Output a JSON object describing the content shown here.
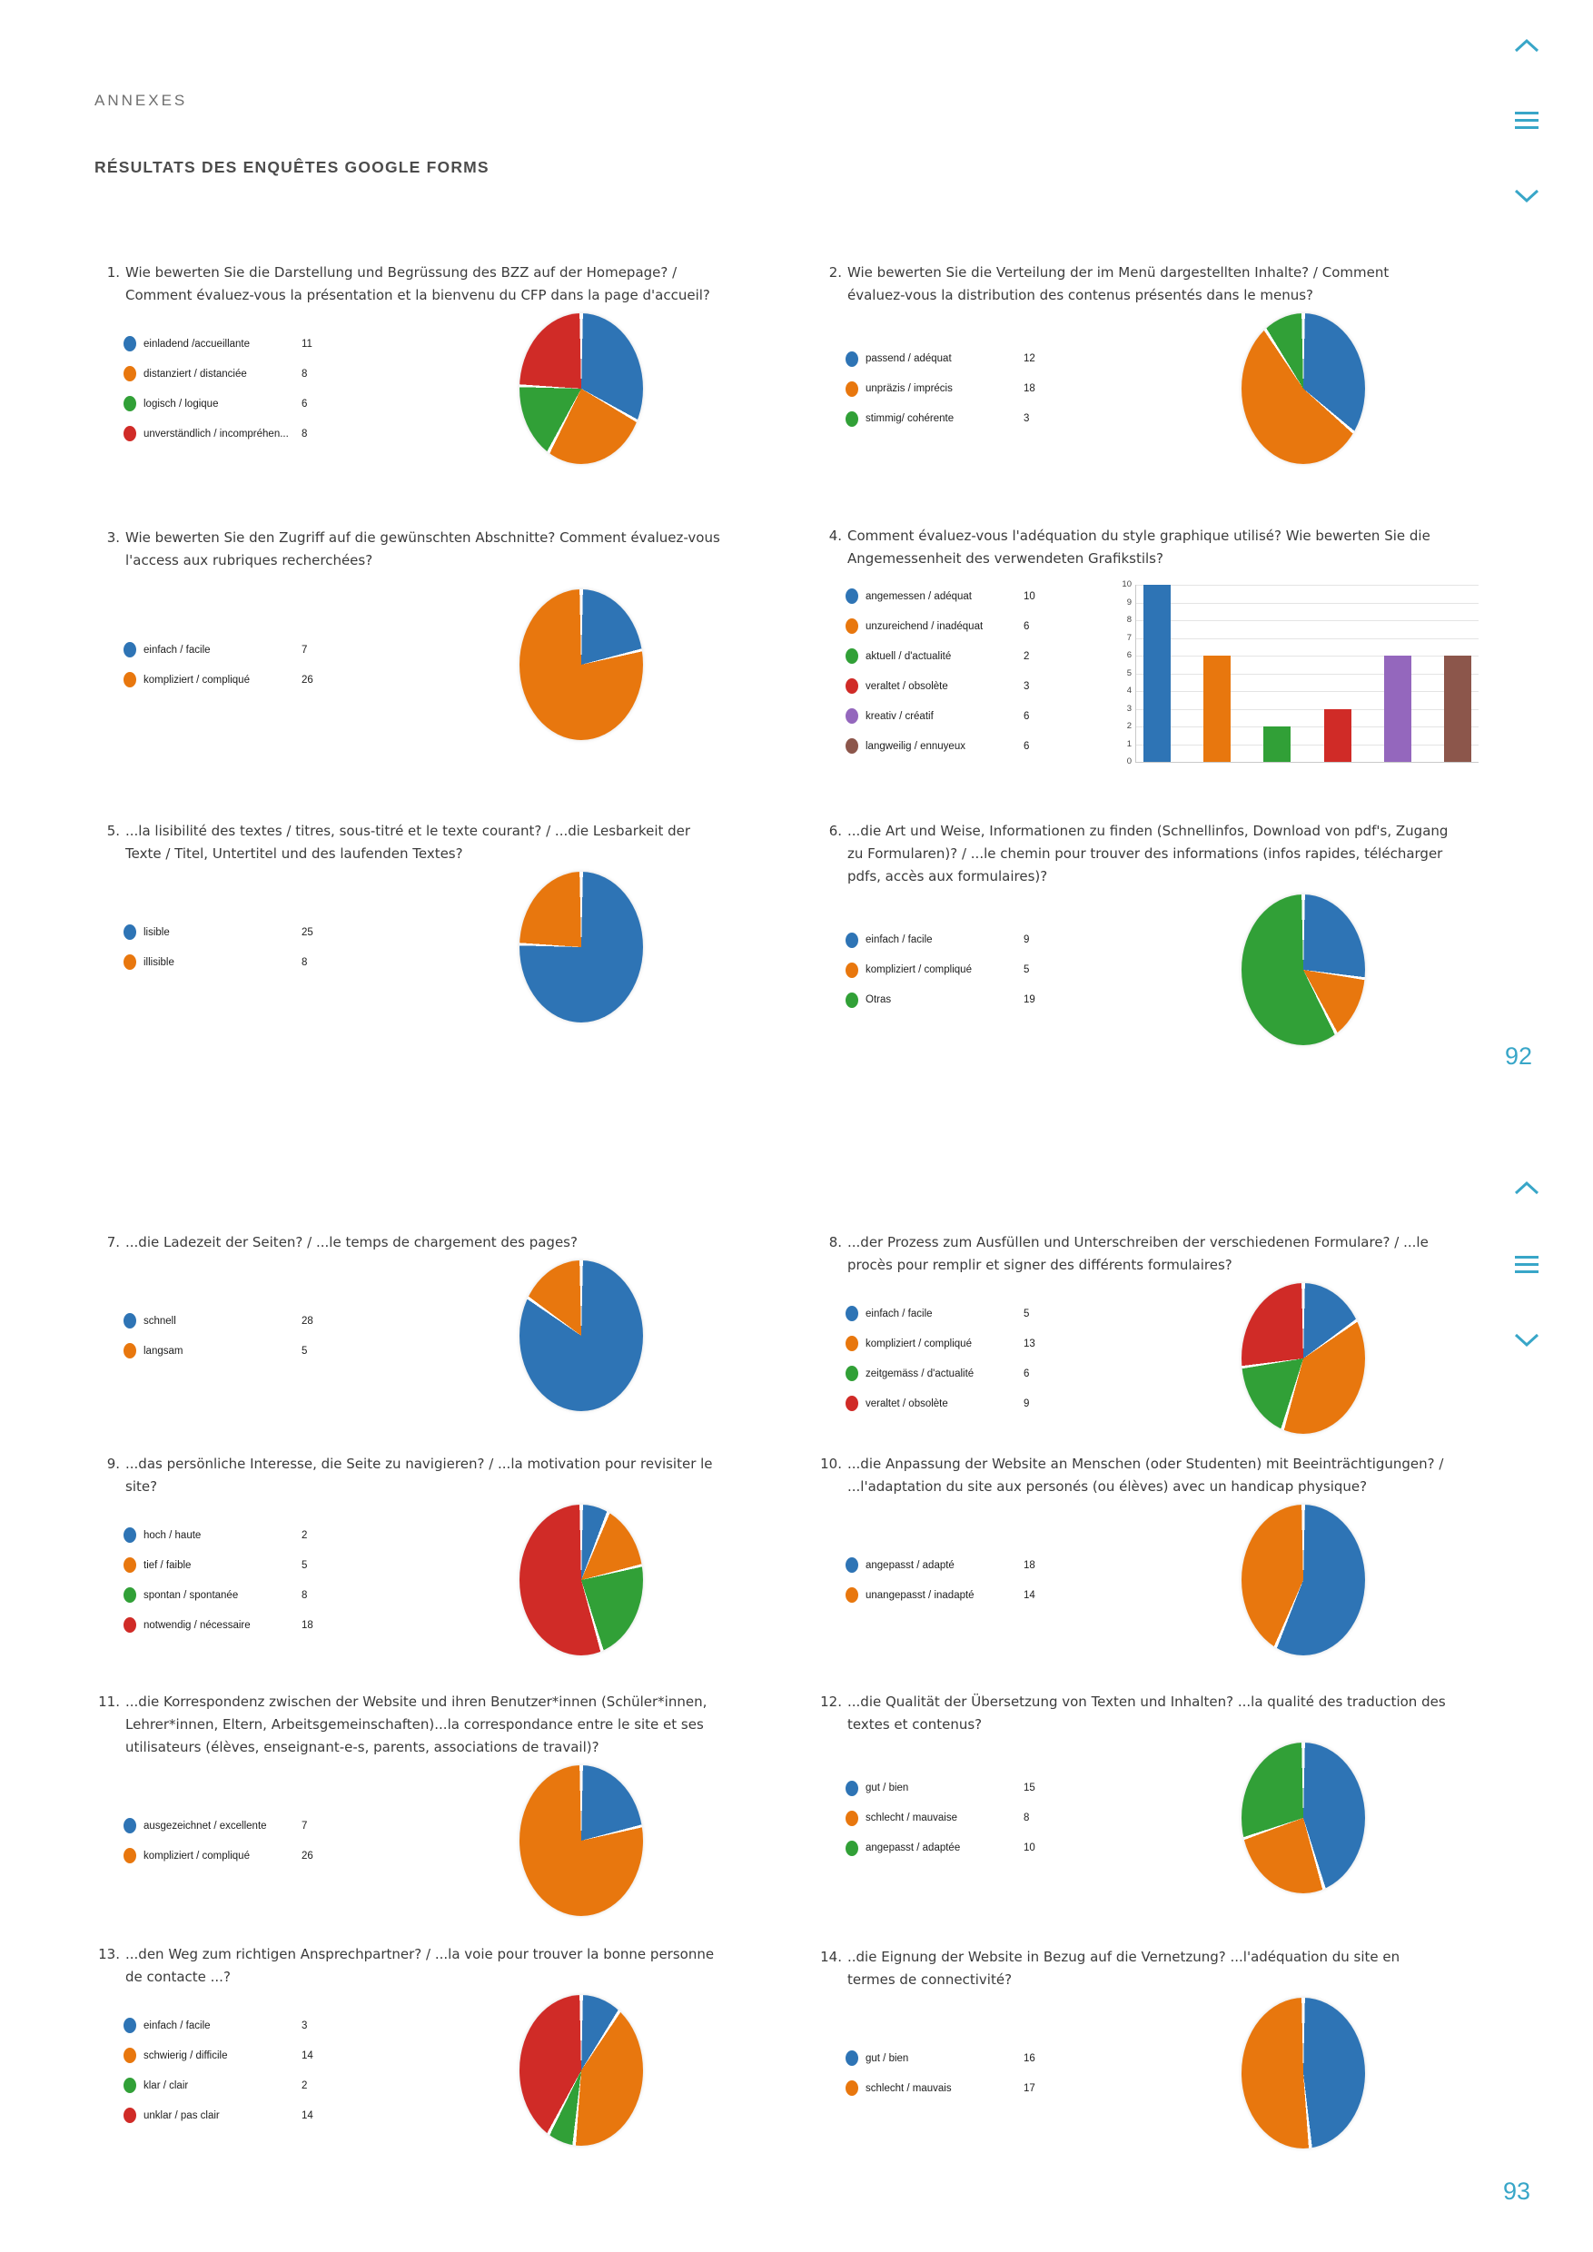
{
  "header": {
    "eyebrow": "ANNEXES",
    "title": "RÉSULTATS DES ENQUÊTES GOOGLE FORMS"
  },
  "page_numbers": [
    "92",
    "93"
  ],
  "nav_icons": [
    "chevron-up",
    "menu",
    "chevron-down"
  ],
  "colors": {
    "accent": "#38a6c8",
    "blue": "#2e74b5",
    "orange": "#e8770e",
    "green": "#31a037",
    "red": "#d02b27",
    "purple": "#9467bd",
    "brown": "#8c564b"
  },
  "chart_data": [
    {
      "id": "q1",
      "number": "1.",
      "type": "pie",
      "question": "Wie bewerten Sie die Darstellung und Begrüssung des BZZ auf der Homepage? / Comment évaluez-vous la présentation et la bienvenu du CFP dans la page d'accueil?",
      "labels": [
        "einladend /accueillante",
        "distanziert / distanciée",
        "logisch / logique",
        "unverständlich / incompréhen..."
      ],
      "values": [
        11,
        8,
        6,
        8
      ],
      "colors": [
        "#2e74b5",
        "#e8770e",
        "#31a037",
        "#d02b27"
      ]
    },
    {
      "id": "q2",
      "number": "2.",
      "type": "pie",
      "question": "Wie bewerten Sie die Verteilung der im Menü dargestellten Inhalte? / Comment évaluez-vous la distribution des contenus présentés dans le menus?",
      "labels": [
        "passend / adéquat",
        "unpräzis / imprécis",
        "stimmig/ cohérente"
      ],
      "values": [
        12,
        18,
        3
      ],
      "colors": [
        "#2e74b5",
        "#e8770e",
        "#31a037"
      ]
    },
    {
      "id": "q3",
      "number": "3.",
      "type": "pie",
      "question": "Wie bewerten Sie den Zugriff auf die gewünschten Abschnitte? Comment évaluez-vous l'access aux rubriques recherchées?",
      "labels": [
        "einfach / facile",
        "kompliziert / compliqué"
      ],
      "values": [
        7,
        26
      ],
      "colors": [
        "#2e74b5",
        "#e8770e"
      ]
    },
    {
      "id": "q4",
      "number": "4.",
      "type": "bar",
      "question": "Comment évaluez-vous l'adéquation du style graphique utilisé? Wie bewerten Sie die Angemessenheit des verwendeten Grafikstils?",
      "labels": [
        "angemessen / adéquat",
        "unzureichend / inadéquat",
        "aktuell / d'actualité",
        "veraltet / obsolète",
        "kreativ / créatif",
        "langweilig / ennuyeux"
      ],
      "values": [
        10,
        6,
        2,
        3,
        6,
        6
      ],
      "colors": [
        "#2e74b5",
        "#e8770e",
        "#31a037",
        "#d02b27",
        "#9467bd",
        "#8c564b"
      ],
      "ylim": [
        0,
        10
      ],
      "yticks": [
        0,
        1,
        2,
        3,
        4,
        5,
        6,
        7,
        8,
        9,
        10
      ]
    },
    {
      "id": "q5",
      "number": "5.",
      "type": "pie",
      "question": "...la lisibilité des textes / titres, sous-titré et le texte courant? / ...die Lesbarkeit der Texte / Titel, Untertitel und des laufenden Textes?",
      "labels": [
        "lisible",
        "illisible"
      ],
      "values": [
        25,
        8
      ],
      "colors": [
        "#2e74b5",
        "#e8770e"
      ]
    },
    {
      "id": "q6",
      "number": "6.",
      "type": "pie",
      "question": "...die Art und Weise, Informationen zu finden (Schnellinfos, Download von pdf's, Zugang zu Formularen)? / ...le chemin pour trouver des informations (infos rapides, télécharger pdfs, accès aux formulaires)?",
      "labels": [
        "einfach / facile",
        "kompliziert / compliqué",
        "Otras"
      ],
      "values": [
        9,
        5,
        19
      ],
      "colors": [
        "#2e74b5",
        "#e8770e",
        "#31a037"
      ]
    },
    {
      "id": "q7",
      "number": "7.",
      "type": "pie",
      "question": "...die Ladezeit der Seiten? / ...le temps de chargement des pages?",
      "labels": [
        "schnell",
        "langsam"
      ],
      "values": [
        28,
        5
      ],
      "colors": [
        "#2e74b5",
        "#e8770e"
      ]
    },
    {
      "id": "q8",
      "number": "8.",
      "type": "pie",
      "question": "...der Prozess zum Ausfüllen und Unterschreiben der verschiedenen Formulare? / ...le procès pour remplir et signer des différents formulaires?",
      "labels": [
        "einfach / facile",
        "kompliziert / compliqué",
        "zeitgemäss / d'actualité",
        "veraltet / obsolète"
      ],
      "values": [
        5,
        13,
        6,
        9
      ],
      "colors": [
        "#2e74b5",
        "#e8770e",
        "#31a037",
        "#d02b27"
      ]
    },
    {
      "id": "q9",
      "number": "9.",
      "type": "pie",
      "question": "...das persönliche Interesse, die Seite zu navigieren? / ...la motivation pour revisiter le site?",
      "labels": [
        "hoch / haute",
        "tief / faible",
        "spontan / spontanée",
        "notwendig / nécessaire"
      ],
      "values": [
        2,
        5,
        8,
        18
      ],
      "colors": [
        "#2e74b5",
        "#e8770e",
        "#31a037",
        "#d02b27"
      ]
    },
    {
      "id": "q10",
      "number": "10.",
      "type": "pie",
      "question": "...die Anpassung der Website an Menschen (oder Studenten) mit Beeinträchtigungen? / ...l'adaptation du site aux personés (ou élèves) avec un handicap physique?",
      "labels": [
        "angepasst / adapté",
        "unangepasst / inadapté"
      ],
      "values": [
        18,
        14
      ],
      "colors": [
        "#2e74b5",
        "#e8770e"
      ]
    },
    {
      "id": "q11",
      "number": "11.",
      "type": "pie",
      "question": "...die Korrespondenz zwischen der Website und ihren Benutzer*innen (Schüler*innen, Lehrer*innen, Eltern, Arbeitsgemeinschaften)...la correspondance entre le site et ses utilisateurs (élèves, enseignant-e-s, parents, associations de travail)?",
      "labels": [
        "ausgezeichnet / excellente",
        "kompliziert / compliqué"
      ],
      "values": [
        7,
        26
      ],
      "colors": [
        "#2e74b5",
        "#e8770e"
      ]
    },
    {
      "id": "q12",
      "number": "12.",
      "type": "pie",
      "question": "...die Qualität der Übersetzung von Texten und Inhalten? ...la qualité des traduction des textes et contenus?",
      "labels": [
        "gut / bien",
        "schlecht / mauvaise",
        "angepasst / adaptée"
      ],
      "values": [
        15,
        8,
        10
      ],
      "colors": [
        "#2e74b5",
        "#e8770e",
        "#31a037"
      ]
    },
    {
      "id": "q13",
      "number": "13.",
      "type": "pie",
      "question": "...den Weg zum richtigen Ansprechpartner? / ...la voie pour trouver la bonne personne de contacte ...?",
      "labels": [
        "einfach / facile",
        "schwierig / difficile",
        "klar / clair",
        "unklar / pas clair"
      ],
      "values": [
        3,
        14,
        2,
        14
      ],
      "colors": [
        "#2e74b5",
        "#e8770e",
        "#31a037",
        "#d02b27"
      ]
    },
    {
      "id": "q14",
      "number": "14.",
      "type": "pie",
      "question": "..die Eignung der Website in Bezug auf die Vernetzung? ...l'adéquation du site en termes de connectivité?",
      "labels": [
        "gut / bien",
        "schlecht / mauvais"
      ],
      "values": [
        16,
        17
      ],
      "colors": [
        "#2e74b5",
        "#e8770e"
      ]
    }
  ]
}
